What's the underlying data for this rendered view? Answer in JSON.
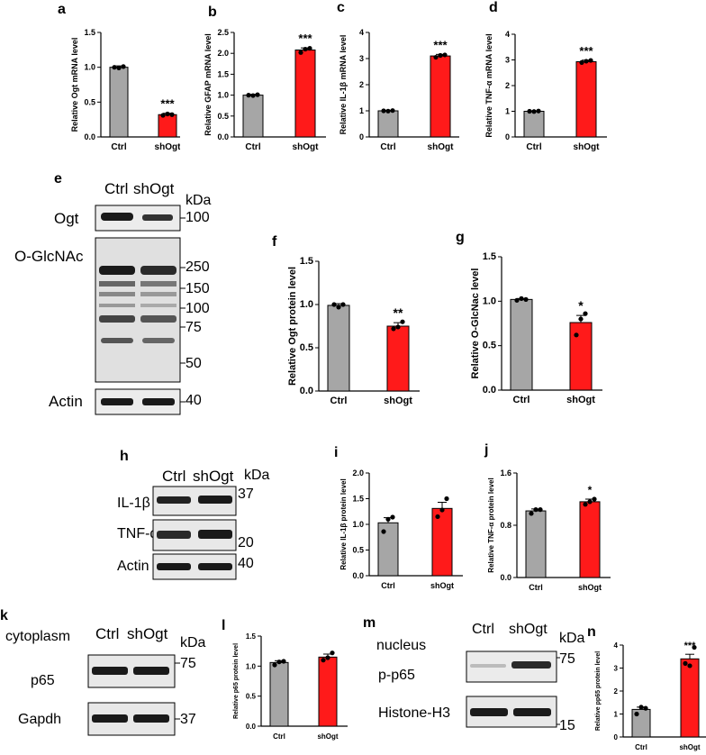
{
  "panel_letters": [
    "a",
    "b",
    "c",
    "d",
    "e",
    "f",
    "g",
    "h",
    "i",
    "j",
    "k",
    "l",
    "m",
    "n"
  ],
  "colors": {
    "ctrl": "#a6a6a6",
    "shogt": "#ff1a1a",
    "stroke": "#000000",
    "band": "#1a1a1a",
    "blot_bg": "#e8e8e8"
  },
  "chart_data": [
    {
      "id": "a",
      "type": "bar",
      "categories": [
        "Ctrl",
        "shOgt"
      ],
      "values": [
        1.0,
        0.32
      ],
      "errors": [
        0.02,
        0.02
      ],
      "points": [
        [
          1.0,
          0.99,
          1.01
        ],
        [
          0.31,
          0.33,
          0.32
        ]
      ],
      "ylabel": "Relative Ogt mRNA level",
      "ylim": [
        0,
        1.5
      ],
      "yticks": [
        "0.0",
        "0.5",
        "1.0",
        "1.5"
      ],
      "sig": "***"
    },
    {
      "id": "b",
      "type": "bar",
      "categories": [
        "Ctrl",
        "shOgt"
      ],
      "values": [
        1.0,
        2.08
      ],
      "errors": [
        0.02,
        0.05
      ],
      "points": [
        [
          1.0,
          0.99,
          1.01
        ],
        [
          2.02,
          2.1,
          2.12
        ]
      ],
      "ylabel": "Relative GFAP mRNA level",
      "ylim": [
        0,
        2.5
      ],
      "yticks": [
        "0.0",
        "0.5",
        "1.0",
        "1.5",
        "2.0",
        "2.5"
      ],
      "sig": "***"
    },
    {
      "id": "c",
      "type": "bar",
      "categories": [
        "Ctrl",
        "shOgt"
      ],
      "values": [
        1.0,
        3.1
      ],
      "errors": [
        0.02,
        0.06
      ],
      "points": [
        [
          1.0,
          0.99,
          1.01
        ],
        [
          3.05,
          3.12,
          3.14
        ]
      ],
      "ylabel": "Relative IL-1β mRNA level",
      "ylim": [
        0,
        4
      ],
      "yticks": [
        "0",
        "1",
        "2",
        "3",
        "4"
      ],
      "sig": "***"
    },
    {
      "id": "d",
      "type": "bar",
      "categories": [
        "Ctrl",
        "shOgt"
      ],
      "values": [
        1.0,
        2.93
      ],
      "errors": [
        0.02,
        0.06
      ],
      "points": [
        [
          1.0,
          0.99,
          1.01
        ],
        [
          2.9,
          2.95,
          2.98
        ]
      ],
      "ylabel": "Relative TNF-α mRNA level",
      "ylim": [
        0,
        4
      ],
      "yticks": [
        "0",
        "1",
        "2",
        "3",
        "4"
      ],
      "sig": "***"
    },
    {
      "id": "f",
      "type": "bar",
      "categories": [
        "Ctrl",
        "shOgt"
      ],
      "values": [
        0.99,
        0.75
      ],
      "errors": [
        0.02,
        0.04
      ],
      "points": [
        [
          1.0,
          0.97,
          1.0
        ],
        [
          0.72,
          0.74,
          0.8
        ]
      ],
      "ylabel": "Relative Ogt protein level",
      "ylim": [
        0,
        1.5
      ],
      "yticks": [
        "0.0",
        "0.5",
        "1.0",
        "1.5"
      ],
      "sig": "**"
    },
    {
      "id": "g",
      "type": "bar",
      "categories": [
        "Ctrl",
        "shOgt"
      ],
      "values": [
        1.02,
        0.76
      ],
      "errors": [
        0.01,
        0.08
      ],
      "points": [
        [
          1.01,
          1.03,
          1.02
        ],
        [
          0.62,
          0.8,
          0.86
        ]
      ],
      "ylabel": "Relative O-GlcNac level",
      "ylim": [
        0,
        1.5
      ],
      "yticks": [
        "0.0",
        "0.5",
        "1.0",
        "1.5"
      ],
      "sig": "*"
    },
    {
      "id": "i",
      "type": "bar",
      "categories": [
        "Ctrl",
        "shOgt"
      ],
      "values": [
        1.03,
        1.31
      ],
      "errors": [
        0.1,
        0.12
      ],
      "points": [
        [
          0.86,
          1.1,
          1.14
        ],
        [
          1.15,
          1.28,
          1.5
        ]
      ],
      "ylabel": "Relative IL-1β protein level",
      "ylim": [
        0,
        2.0
      ],
      "yticks": [
        "0.0",
        "0.5",
        "1.0",
        "1.5",
        "2.0"
      ],
      "sig": ""
    },
    {
      "id": "j",
      "type": "bar",
      "categories": [
        "Ctrl",
        "shOgt"
      ],
      "values": [
        1.02,
        1.16
      ],
      "errors": [
        0.03,
        0.04
      ],
      "points": [
        [
          0.98,
          1.04,
          1.04
        ],
        [
          1.12,
          1.16,
          1.2
        ]
      ],
      "ylabel": "Relative TNF-α protein level",
      "ylim": [
        0,
        1.6
      ],
      "yticks": [
        "0.0",
        "0.8",
        "1.6"
      ],
      "sig": "*"
    },
    {
      "id": "l",
      "type": "bar",
      "categories": [
        "Ctrl",
        "shOgt"
      ],
      "values": [
        1.06,
        1.15
      ],
      "errors": [
        0.03,
        0.05
      ],
      "points": [
        [
          1.02,
          1.07,
          1.08
        ],
        [
          1.1,
          1.14,
          1.22
        ]
      ],
      "ylabel": "Relative p65 protein level",
      "ylim": [
        0,
        1.5
      ],
      "yticks": [
        "0.0",
        "0.5",
        "1.0",
        "1.5"
      ],
      "sig": ""
    },
    {
      "id": "n",
      "type": "bar",
      "categories": [
        "Ctrl",
        "shOgt"
      ],
      "values": [
        1.2,
        3.4
      ],
      "errors": [
        0.1,
        0.2
      ],
      "points": [
        [
          1.0,
          1.3,
          1.25
        ],
        [
          3.2,
          3.1,
          3.9
        ]
      ],
      "ylabel": "Relative pp65 protein level",
      "ylim": [
        0,
        4
      ],
      "yticks": [
        "0",
        "1",
        "2",
        "3",
        "4"
      ],
      "sig": "***"
    }
  ],
  "blots": {
    "e": {
      "lanes": [
        "Ctrl",
        "shOgt"
      ],
      "unit": "kDa",
      "rows": [
        "Ogt",
        "O-GlcNAc",
        "Actin"
      ],
      "markers": [
        "100",
        "250",
        "150",
        "100",
        "75",
        "50",
        "40"
      ]
    },
    "h": {
      "lanes": [
        "Ctrl",
        "shOgt"
      ],
      "unit": "kDa",
      "rows": [
        "IL-1β",
        "TNF-α",
        "Actin"
      ],
      "markers": [
        "37",
        "20",
        "40"
      ]
    },
    "k": {
      "title": "cytoplasm",
      "lanes": [
        "Ctrl",
        "shOgt"
      ],
      "unit": "kDa",
      "rows": [
        "p65",
        "Gapdh"
      ],
      "markers": [
        "75",
        "37"
      ]
    },
    "m": {
      "title": "nucleus",
      "lanes": [
        "Ctrl",
        "shOgt"
      ],
      "unit": "kDa",
      "rows": [
        "p-p65",
        "Histone-H3"
      ],
      "markers": [
        "75",
        "15"
      ]
    }
  }
}
